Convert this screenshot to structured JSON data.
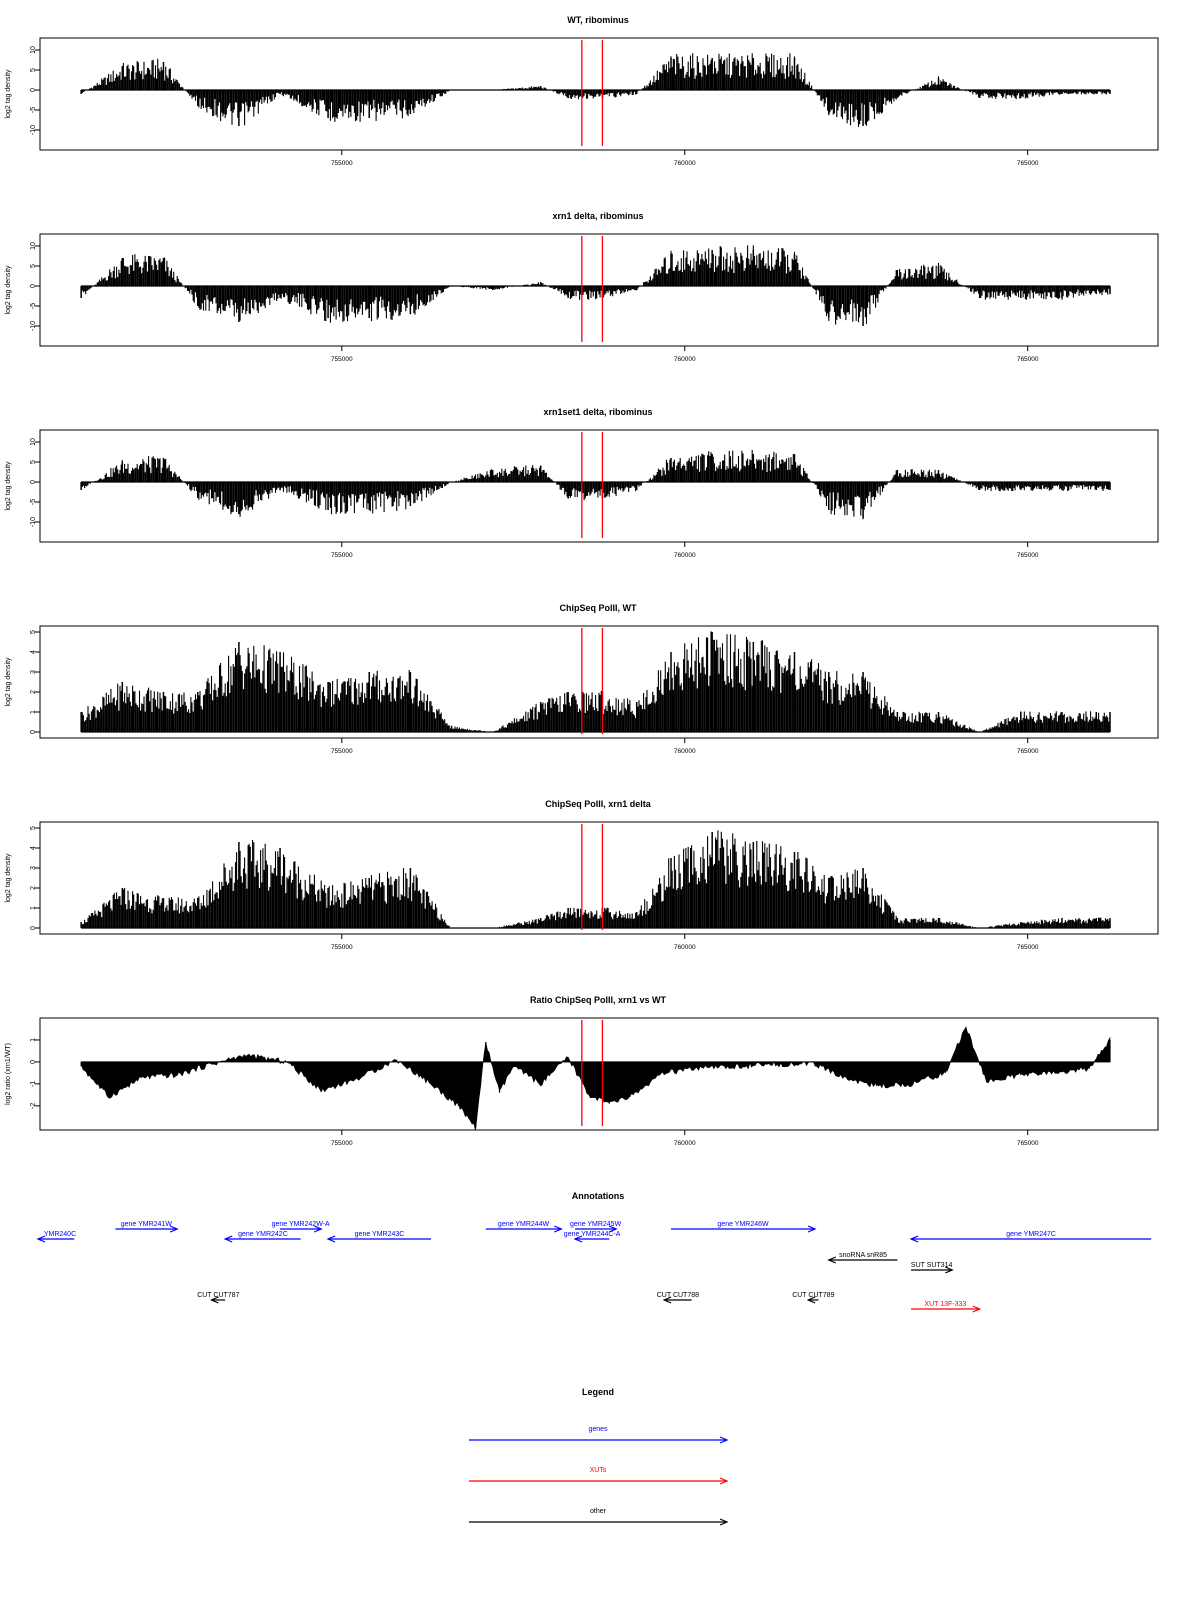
{
  "colors": {
    "axis": "#000000",
    "bar": "#000000",
    "marker": "#ff0000",
    "gene": "#0000ff",
    "xut": "#ff0000",
    "other": "#000000"
  },
  "markers": [
    758500,
    758800
  ],
  "x_ticks": [
    755000,
    760000,
    765000
  ],
  "tick_labels": [
    "755000",
    "760000",
    "765000"
  ],
  "chart_data": [
    {
      "type": "bar",
      "title": "WT, ribominus",
      "ylabel": "log2 tag density",
      "ylim": [
        -15,
        13
      ],
      "yticks": [
        -10,
        -5,
        0,
        5,
        10
      ],
      "ytick_labels": [
        "-10",
        "-5",
        "0",
        "5",
        "10"
      ],
      "x": [
        751200,
        751800,
        752400,
        752900,
        753500,
        754100,
        754800,
        755400,
        756000,
        756600,
        757200,
        757900,
        758300,
        758800,
        759300,
        759800,
        760400,
        761000,
        761600,
        762100,
        762600,
        763100,
        763700,
        764300,
        764900,
        765500,
        766000,
        766200
      ],
      "values": [
        -1,
        6,
        7,
        -4,
        -9,
        -1,
        -7,
        -7,
        -6,
        0,
        0,
        1,
        -2,
        -2,
        -1,
        8,
        8,
        8,
        8,
        -6,
        -9,
        -2,
        3,
        -2,
        -2,
        -1,
        -1,
        -1
      ]
    },
    {
      "type": "bar",
      "title": "xrn1 delta, ribominus",
      "ylabel": "log2 tag density",
      "ylim": [
        -15,
        13
      ],
      "yticks": [
        -10,
        -5,
        0,
        5,
        10
      ],
      "ytick_labels": [
        "-10",
        "-5",
        "0",
        "5",
        "10"
      ],
      "x": [
        751200,
        751800,
        752400,
        752900,
        753500,
        754100,
        754800,
        755400,
        756000,
        756600,
        757200,
        757900,
        758300,
        758800,
        759300,
        759800,
        760400,
        761000,
        761600,
        762100,
        762600,
        763100,
        763700,
        764300,
        764900,
        765500,
        766000,
        766200
      ],
      "values": [
        -3,
        7,
        7,
        -5,
        -9,
        -3,
        -8,
        -8,
        -7,
        0,
        -1,
        1,
        -3,
        -3,
        -1,
        8,
        9,
        9,
        8,
        -8,
        -10,
        4,
        5,
        -3,
        -3,
        -3,
        -2,
        -2
      ]
    },
    {
      "type": "bar",
      "title": "xrn1set1 delta, ribominus",
      "ylabel": "log2 tag density",
      "ylim": [
        -15,
        13
      ],
      "yticks": [
        -10,
        -5,
        0,
        5,
        10
      ],
      "ytick_labels": [
        "-10",
        "-5",
        "0",
        "5",
        "10"
      ],
      "x": [
        751200,
        751800,
        752400,
        752900,
        753500,
        754100,
        754800,
        755400,
        756000,
        756600,
        757200,
        757900,
        758300,
        758800,
        759300,
        759800,
        760400,
        761000,
        761600,
        762100,
        762600,
        763100,
        763700,
        764300,
        764900,
        765500,
        766000,
        766200
      ],
      "values": [
        -2,
        5,
        6,
        -4,
        -8,
        -2,
        -7,
        -7,
        -6,
        0,
        3,
        4,
        -4,
        -4,
        -2,
        6,
        7,
        7,
        7,
        -7,
        -9,
        3,
        3,
        -2,
        -2,
        -2,
        -2,
        -2
      ]
    },
    {
      "type": "bar",
      "title": "ChipSeq PolII, WT",
      "ylabel": "log2 tag density",
      "ylim": [
        -0.3,
        5.3
      ],
      "yticks": [
        0,
        1,
        2,
        3,
        4,
        5
      ],
      "ytick_labels": [
        "0",
        "1",
        "2",
        "3",
        "4",
        "5"
      ],
      "x": [
        751200,
        751800,
        752400,
        752900,
        753500,
        754100,
        754800,
        755400,
        756000,
        756600,
        757200,
        757900,
        758300,
        758800,
        759300,
        759800,
        760400,
        761000,
        761600,
        762100,
        762600,
        763100,
        763700,
        764300,
        764900,
        765500,
        766000,
        766200
      ],
      "values": [
        1,
        2.5,
        2,
        2,
        4.5,
        4,
        2.5,
        3,
        3,
        0.3,
        0,
        1.5,
        2,
        2,
        1.5,
        4,
        5,
        4.5,
        4,
        3,
        3,
        1,
        1,
        0,
        1,
        1,
        1,
        1
      ]
    },
    {
      "type": "bar",
      "title": "ChipSeq PolII, xrn1 delta",
      "ylabel": "log2 tag density",
      "ylim": [
        -0.3,
        5.3
      ],
      "yticks": [
        0,
        1,
        2,
        3,
        4,
        5
      ],
      "ytick_labels": [
        "0",
        "1",
        "2",
        "3",
        "4",
        "5"
      ],
      "x": [
        751200,
        751800,
        752400,
        752900,
        753500,
        754100,
        754800,
        755400,
        756000,
        756600,
        757200,
        757900,
        758300,
        758800,
        759300,
        759800,
        760400,
        761000,
        761600,
        762100,
        762600,
        763100,
        763700,
        764300,
        764900,
        765500,
        766000,
        766200
      ],
      "values": [
        0.3,
        2,
        1.5,
        1.5,
        4.3,
        4,
        2,
        2.5,
        3,
        0,
        0,
        0.5,
        1,
        1,
        0.8,
        3.5,
        4.8,
        4.3,
        3.8,
        2.5,
        3,
        0.5,
        0.5,
        0,
        0.3,
        0.5,
        0.5,
        0.5
      ]
    },
    {
      "type": "area",
      "title": "Ratio ChipSeq PolII, xrn1 vs WT",
      "ylabel": "log2 ratio (xrn1/WT)",
      "ylim": [
        -3.1,
        2
      ],
      "yticks": [
        -2,
        -1,
        0,
        1
      ],
      "ytick_labels": [
        "-2",
        "-1",
        "0",
        "1"
      ],
      "x": [
        751200,
        751600,
        752100,
        752600,
        753100,
        753600,
        754200,
        754700,
        755200,
        755800,
        756300,
        756700,
        756950,
        757100,
        757300,
        757500,
        757900,
        758300,
        758600,
        758900,
        759200,
        759700,
        760200,
        760800,
        761400,
        761900,
        762300,
        762800,
        763300,
        763800,
        764100,
        764400,
        764900,
        765400,
        765900,
        766200
      ],
      "values": [
        -0.2,
        -1.6,
        -0.7,
        -0.6,
        -0.1,
        0.3,
        0,
        -1.3,
        -0.8,
        0.1,
        -1,
        -2,
        -3,
        0.9,
        -1.4,
        -0.2,
        -1,
        0.2,
        -1.5,
        -1.9,
        -1.6,
        -0.5,
        -0.3,
        -0.2,
        -0.1,
        -0.1,
        -0.7,
        -1.1,
        -1,
        -0.5,
        1.6,
        -0.9,
        -0.6,
        -0.5,
        -0.3,
        1
      ]
    }
  ],
  "annotations": {
    "title": "Annotations",
    "items": [
      {
        "label": "YMR240C",
        "dir": -1,
        "start": 749500,
        "end": 751100,
        "row": 1,
        "kind": "gene"
      },
      {
        "label": "gene YMR241W",
        "dir": 1,
        "start": 751700,
        "end": 752600,
        "row": 0,
        "kind": "gene"
      },
      {
        "label": "gene YMR242C",
        "dir": -1,
        "start": 753300,
        "end": 754400,
        "row": 1,
        "kind": "gene"
      },
      {
        "label": "gene YMR242W-A",
        "dir": 1,
        "start": 754100,
        "end": 754700,
        "row": 0,
        "kind": "gene"
      },
      {
        "label": "gene YMR243C",
        "dir": -1,
        "start": 754800,
        "end": 756300,
        "row": 1,
        "kind": "gene"
      },
      {
        "label": "gene YMR244W",
        "dir": 1,
        "start": 757100,
        "end": 758200,
        "row": 0,
        "kind": "gene"
      },
      {
        "label": "gene YMR245W",
        "dir": 1,
        "start": 758400,
        "end": 759000,
        "row": 0,
        "kind": "gene"
      },
      {
        "label": "gene YMR244C-A",
        "dir": -1,
        "start": 758400,
        "end": 758900,
        "row": 1,
        "kind": "gene"
      },
      {
        "label": "gene YMR246W",
        "dir": 1,
        "start": 759800,
        "end": 761900,
        "row": 0,
        "kind": "gene"
      },
      {
        "label": "gene YMR247C",
        "dir": -1,
        "start": 763300,
        "end": 766800,
        "row": 1,
        "kind": "gene"
      },
      {
        "label": "snoRNA snR85",
        "dir": -1,
        "start": 762100,
        "end": 763100,
        "row": 2,
        "kind": "other"
      },
      {
        "label": "SUT SUT314",
        "dir": 1,
        "start": 763300,
        "end": 763900,
        "row": 3,
        "kind": "other"
      },
      {
        "label": "CUT CUT787",
        "dir": -1,
        "start": 753100,
        "end": 753300,
        "row": 4,
        "kind": "other"
      },
      {
        "label": "CUT CUT788",
        "dir": -1,
        "start": 759700,
        "end": 760100,
        "row": 4,
        "kind": "other"
      },
      {
        "label": "CUT CUT789",
        "dir": -1,
        "start": 761800,
        "end": 761950,
        "row": 4,
        "kind": "other"
      },
      {
        "label": "XUT 13F-333",
        "dir": 1,
        "start": 763300,
        "end": 764300,
        "row": 5,
        "kind": "xut"
      }
    ]
  },
  "legend": {
    "title": "Legend",
    "items": [
      {
        "label": "genes",
        "kind": "gene"
      },
      {
        "label": "XUTs",
        "kind": "xut"
      },
      {
        "label": "other",
        "kind": "other"
      }
    ]
  }
}
